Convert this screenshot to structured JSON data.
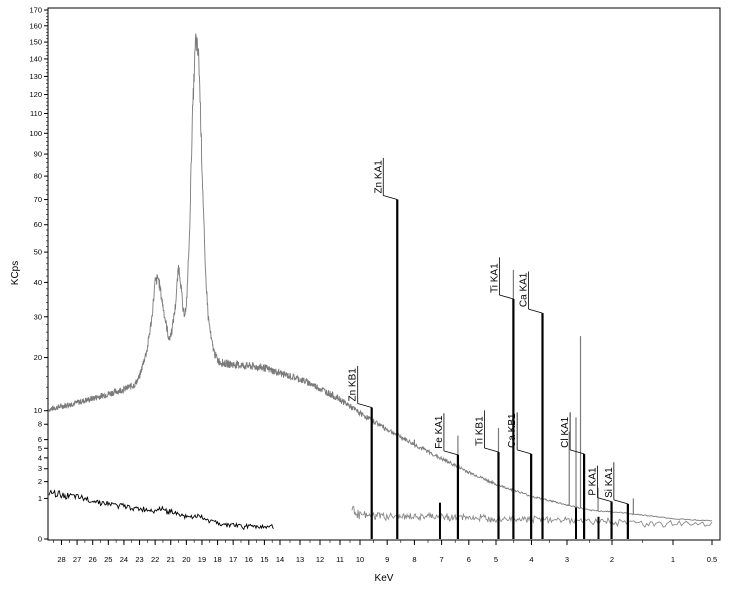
{
  "chart_data": {
    "type": "line",
    "xlabel": "KeV",
    "ylabel": "KCps",
    "x_reversed": true,
    "y_scale": "square-root",
    "xlim": [
      28.8,
      0.45
    ],
    "ylim": [
      0,
      170
    ],
    "x_ticks": [
      {
        "v": 28,
        "label": "28"
      },
      {
        "v": 27,
        "label": "27"
      },
      {
        "v": 26,
        "label": "26"
      },
      {
        "v": 25,
        "label": "25"
      },
      {
        "v": 24,
        "label": "24"
      },
      {
        "v": 23,
        "label": "23"
      },
      {
        "v": 22,
        "label": "22"
      },
      {
        "v": 21,
        "label": "21"
      },
      {
        "v": 20,
        "label": "20"
      },
      {
        "v": 19,
        "label": "19"
      },
      {
        "v": 18,
        "label": "18"
      },
      {
        "v": 17,
        "label": "17"
      },
      {
        "v": 16,
        "label": "16"
      },
      {
        "v": 15,
        "label": "15"
      },
      {
        "v": 14,
        "label": "14"
      },
      {
        "v": 13,
        "label": "13"
      },
      {
        "v": 12,
        "label": "12"
      },
      {
        "v": 11,
        "label": "11"
      },
      {
        "v": 10,
        "label": "10"
      },
      {
        "v": 9,
        "label": "9"
      },
      {
        "v": 8,
        "label": "8"
      },
      {
        "v": 7,
        "label": "7"
      },
      {
        "v": 6,
        "label": "6"
      },
      {
        "v": 5,
        "label": "5"
      },
      {
        "v": 4,
        "label": "4"
      },
      {
        "v": 3,
        "label": "3"
      },
      {
        "v": 2,
        "label": "2"
      },
      {
        "v": 1,
        "label": "1"
      },
      {
        "v": 0.5,
        "label": "0.5"
      }
    ],
    "y_ticks": [
      {
        "v": 0,
        "label": "0"
      },
      {
        "v": 1,
        "label": "1"
      },
      {
        "v": 2,
        "label": "2"
      },
      {
        "v": 3,
        "label": "3"
      },
      {
        "v": 4,
        "label": "4"
      },
      {
        "v": 5,
        "label": "5"
      },
      {
        "v": 6,
        "label": "6"
      },
      {
        "v": 8,
        "label": "8"
      },
      {
        "v": 10,
        "label": "10"
      },
      {
        "v": 20,
        "label": "20"
      },
      {
        "v": 30,
        "label": "30"
      },
      {
        "v": 40,
        "label": "40"
      },
      {
        "v": 50,
        "label": "50"
      },
      {
        "v": 60,
        "label": "60"
      },
      {
        "v": 70,
        "label": "70"
      },
      {
        "v": 80,
        "label": "80"
      },
      {
        "v": 90,
        "label": "90"
      },
      {
        "v": 100,
        "label": "100"
      },
      {
        "v": 110,
        "label": "110"
      },
      {
        "v": 120,
        "label": "120"
      },
      {
        "v": 130,
        "label": "130"
      },
      {
        "v": 140,
        "label": "140"
      },
      {
        "v": 150,
        "label": "150"
      },
      {
        "v": 160,
        "label": "160"
      },
      {
        "v": 170,
        "label": "170"
      }
    ],
    "series": [
      {
        "color": "#7a7a7a",
        "x": [
          28.8,
          28,
          27,
          26,
          25,
          24,
          23.3,
          23,
          22.5,
          22.2,
          22,
          21.8,
          21.5,
          21.3,
          21.1,
          20.9,
          20.7,
          20.5,
          20.4,
          20.2,
          20.0,
          19.8,
          19.6,
          19.4,
          19.2,
          19.0,
          18.8,
          18.6,
          18.4,
          18.2,
          18.0,
          17.8,
          17.5,
          17,
          16,
          15,
          14,
          13,
          12.5,
          12,
          11,
          10,
          9,
          8,
          7,
          6,
          5,
          4,
          3.5,
          3,
          2.5,
          2,
          1.5,
          1,
          0.5
        ],
        "y": [
          10.2,
          10.7,
          11.3,
          12.0,
          12.8,
          13.6,
          14.5,
          16.0,
          22.0,
          30.0,
          40.0,
          41.5,
          33.0,
          28.0,
          24.0,
          27.0,
          33.0,
          45.0,
          42.0,
          31.0,
          32.0,
          55.0,
          110.0,
          152.0,
          140.0,
          85.0,
          45.0,
          30.0,
          24.0,
          21.0,
          19.5,
          19.0,
          18.7,
          18.5,
          18.2,
          17.8,
          16.7,
          15.5,
          14.7,
          13.8,
          11.8,
          9.6,
          7.3,
          5.4,
          3.9,
          2.7,
          1.8,
          1.1,
          0.9,
          0.7,
          0.5,
          0.45,
          0.35,
          0.25,
          0.2
        ],
        "spikes": [
          {
            "x": 9.57,
            "y": 10.0
          },
          {
            "x": 8.63,
            "y": 38.0
          },
          {
            "x": 8.0,
            "y": 6.0
          },
          {
            "x": 6.4,
            "y": 6.5
          },
          {
            "x": 4.93,
            "y": 7.5
          },
          {
            "x": 4.51,
            "y": 44.0
          },
          {
            "x": 3.69,
            "y": 8.0
          },
          {
            "x": 2.95,
            "y": 7.0
          },
          {
            "x": 2.8,
            "y": 9.0
          },
          {
            "x": 2.7,
            "y": 25.0
          },
          {
            "x": 2.62,
            "y": 3.5
          },
          {
            "x": 2.31,
            "y": 1.6
          },
          {
            "x": 1.65,
            "y": 1.0
          }
        ]
      },
      {
        "color": "#000000",
        "x": [
          28.8,
          28,
          27,
          26,
          25,
          24,
          23,
          22,
          21.5,
          21.2,
          21,
          20.5,
          20,
          19.5,
          19,
          18.5,
          18,
          17.5,
          17,
          16.5,
          16,
          15.5,
          15,
          14.5,
          14.4
        ],
        "y": [
          1.3,
          1.2,
          1.05,
          0.9,
          0.75,
          0.65,
          0.55,
          0.5,
          0.6,
          0.42,
          0.5,
          0.35,
          0.3,
          0.32,
          0.28,
          0.2,
          0.15,
          0.12,
          0.12,
          0.1,
          0.1,
          0.1,
          0.1,
          0.1,
          0.1
        ],
        "x2": [
          10.4,
          10,
          9,
          8,
          7,
          6,
          5,
          4,
          3,
          2,
          1,
          0.5
        ],
        "y2": [
          0.55,
          0.35,
          0.32,
          0.3,
          0.3,
          0.28,
          0.27,
          0.25,
          0.22,
          0.18,
          0.15,
          0.12
        ]
      }
    ],
    "peaks": [
      {
        "label": "Zn KB1",
        "energy": 9.57,
        "y": 10.5
      },
      {
        "label": "Zn KA1",
        "energy": 8.63,
        "y": 70
      },
      {
        "label": "Fe KA1",
        "energy": 6.4,
        "y": 4.3
      },
      {
        "label": "Ti KB1",
        "energy": 4.93,
        "y": 4.6
      },
      {
        "label": "Ti KA1",
        "energy": 4.51,
        "y": 35
      },
      {
        "label": "Ca KB1",
        "energy": 4.01,
        "y": 4.4
      },
      {
        "label": "Ca KA1",
        "energy": 3.69,
        "y": 31
      },
      {
        "label": "Cl KA1",
        "energy": 2.62,
        "y": 4.4
      },
      {
        "label": "P KA1",
        "energy": 2.01,
        "y": 0.85
      },
      {
        "label": "Si KA1",
        "energy": 1.74,
        "y": 0.75
      }
    ],
    "extra_markers": [
      {
        "energy": 7.06,
        "y": 0.8
      },
      {
        "energy": 2.8,
        "y": 0.6
      },
      {
        "energy": 2.3,
        "y": 0.3
      }
    ],
    "grid": false,
    "legend": "none"
  }
}
